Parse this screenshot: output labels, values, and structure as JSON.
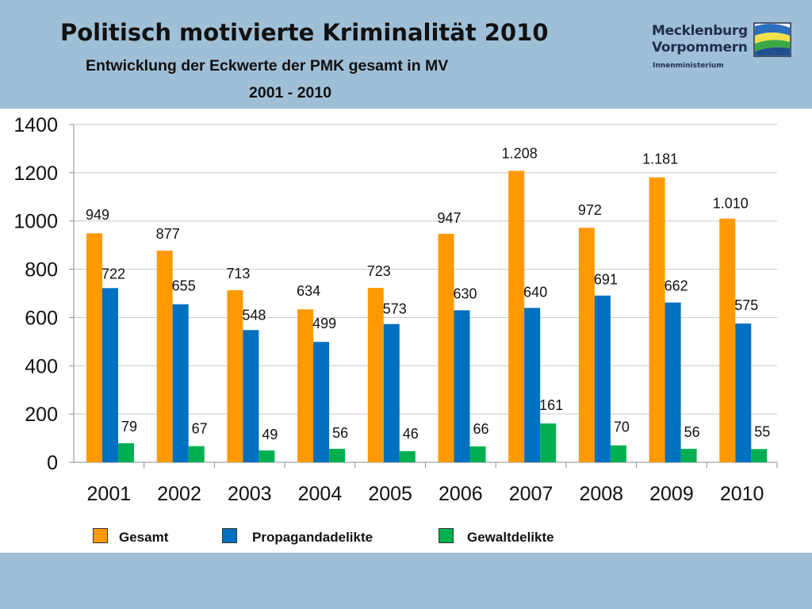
{
  "header": {
    "title": "Politisch motivierte Kriminalität 2010",
    "subtitle": "Entwicklung der Eckwerte der PMK gesamt in MV",
    "subtitle2": "2001 - 2010"
  },
  "logo": {
    "line1": "Mecklenburg",
    "line2": "Vorpommern",
    "line3": "Innenministerium"
  },
  "colors": {
    "header_bg": "#9fbfd7",
    "gesamt": "#ff9900",
    "propaganda": "#0070c0",
    "gewalt": "#00b050"
  },
  "chart_data": {
    "type": "bar",
    "categories": [
      "2001",
      "2002",
      "2003",
      "2004",
      "2005",
      "2006",
      "2007",
      "2008",
      "2009",
      "2010"
    ],
    "series": [
      {
        "name": "Gesamt",
        "color": "#ff9900",
        "values": [
          949,
          877,
          713,
          634,
          723,
          947,
          1208,
          972,
          1181,
          1010
        ],
        "labels": [
          "949",
          "877",
          "713",
          "634",
          "723",
          "947",
          "1.208",
          "972",
          "1.181",
          "1.010"
        ]
      },
      {
        "name": "Propagandadelikte",
        "color": "#0070c0",
        "values": [
          722,
          655,
          548,
          499,
          573,
          630,
          640,
          691,
          662,
          575
        ],
        "labels": [
          "722",
          "655",
          "548",
          "499",
          "573",
          "630",
          "640",
          "691",
          "662",
          "575"
        ]
      },
      {
        "name": "Gewaltdelikte",
        "color": "#00b050",
        "values": [
          79,
          67,
          49,
          56,
          46,
          66,
          161,
          70,
          56,
          55
        ],
        "labels": [
          "79",
          "67",
          "49",
          "56",
          "46",
          "66",
          "161",
          "70",
          "56",
          "55"
        ]
      }
    ],
    "yticks": [
      "0",
      "200",
      "400",
      "600",
      "800",
      "1000",
      "1200",
      "1400"
    ],
    "ylim": [
      0,
      1400
    ],
    "grid": true,
    "legend_position": "bottom"
  }
}
